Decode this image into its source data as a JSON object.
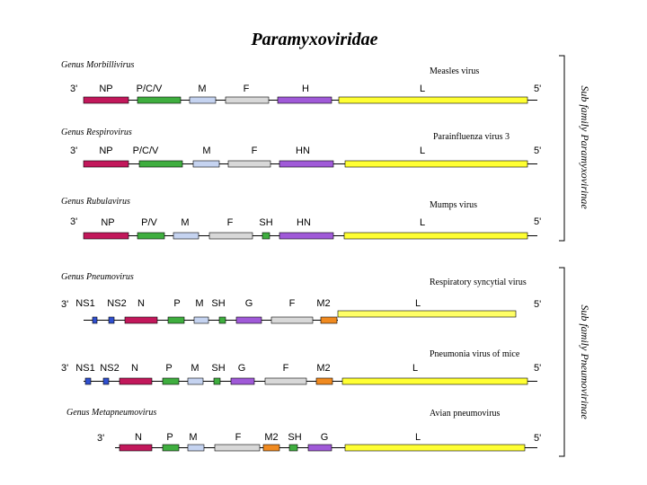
{
  "title": "Paramyxoviridae",
  "colors": {
    "NP": "#c2185b",
    "PC": "#3fae3f",
    "M": "#c5d3f0",
    "F": "#d8d8d8",
    "H": "#a05ad8",
    "M2": "#f08a20",
    "L": "#ffff33",
    "NS": "#3050d0",
    "SH": "#3fae3f"
  },
  "subfamilies": [
    {
      "label": "Sub family Paramyxovirinae"
    },
    {
      "label": "Sub family Pneumovirinae"
    }
  ],
  "rows": [
    {
      "genus": "Genus Morbillivirus",
      "virus": "Measles virus",
      "end3": "3'",
      "end5": "5'",
      "genes": [
        {
          "label": "NP",
          "color": "NP"
        },
        {
          "label": "P/C/V",
          "color": "PC"
        },
        {
          "label": "M",
          "color": "M"
        },
        {
          "label": "F",
          "color": "F"
        },
        {
          "label": "H",
          "color": "H"
        },
        {
          "label": "L",
          "color": "L"
        }
      ]
    },
    {
      "genus": "Genus Respirovirus",
      "virus": "Parainfluenza virus 3",
      "end3": "3'",
      "end5": "5'",
      "genes": [
        {
          "label": "NP",
          "color": "NP"
        },
        {
          "label": "P/C/V",
          "color": "PC"
        },
        {
          "label": "M",
          "color": "M"
        },
        {
          "label": "F",
          "color": "F"
        },
        {
          "label": "HN",
          "color": "H"
        },
        {
          "label": "L",
          "color": "L"
        }
      ]
    },
    {
      "genus": "Genus Rubulavirus",
      "virus": "Mumps virus",
      "end3": "3'",
      "end5": "5'",
      "genes": [
        {
          "label": "NP",
          "color": "NP"
        },
        {
          "label": "P/V",
          "color": "PC"
        },
        {
          "label": "M",
          "color": "M"
        },
        {
          "label": "F",
          "color": "F"
        },
        {
          "label": "SH",
          "color": "SH"
        },
        {
          "label": "HN",
          "color": "H"
        },
        {
          "label": "L",
          "color": "L"
        }
      ]
    },
    {
      "genus": "Genus Pneumovirus",
      "virus": "Respiratory syncytial virus",
      "end3": "3'",
      "end5": "5'",
      "genes": [
        {
          "label": "NS1",
          "color": "NS"
        },
        {
          "label": "NS2",
          "color": "NS"
        },
        {
          "label": "N",
          "color": "NP"
        },
        {
          "label": "P",
          "color": "PC"
        },
        {
          "label": "M",
          "color": "M"
        },
        {
          "label": "SH",
          "color": "SH"
        },
        {
          "label": "G",
          "color": "H"
        },
        {
          "label": "F",
          "color": "F"
        },
        {
          "label": "M2",
          "color": "M2"
        },
        {
          "label": "L",
          "color": "L"
        }
      ]
    },
    {
      "genus": "",
      "virus": "Pneumonia virus of mice",
      "end3": "3'",
      "end5": "5'",
      "genes": [
        {
          "label": "NS1",
          "color": "NS"
        },
        {
          "label": "NS2",
          "color": "NS"
        },
        {
          "label": "N",
          "color": "NP"
        },
        {
          "label": "P",
          "color": "PC"
        },
        {
          "label": "M",
          "color": "M"
        },
        {
          "label": "SH",
          "color": "SH"
        },
        {
          "label": "G",
          "color": "H"
        },
        {
          "label": "F",
          "color": "F"
        },
        {
          "label": "M2",
          "color": "M2"
        },
        {
          "label": "L",
          "color": "L"
        }
      ]
    },
    {
      "genus": "Genus Metapneumovirus",
      "virus": "Avian pneumovirus",
      "end3": "3'",
      "end5": "5'",
      "genes": [
        {
          "label": "N",
          "color": "NP"
        },
        {
          "label": "P",
          "color": "PC"
        },
        {
          "label": "M",
          "color": "M"
        },
        {
          "label": "F",
          "color": "F"
        },
        {
          "label": "M2",
          "color": "M2"
        },
        {
          "label": "SH",
          "color": "SH"
        },
        {
          "label": "G",
          "color": "H"
        },
        {
          "label": "L",
          "color": "L"
        }
      ]
    }
  ]
}
